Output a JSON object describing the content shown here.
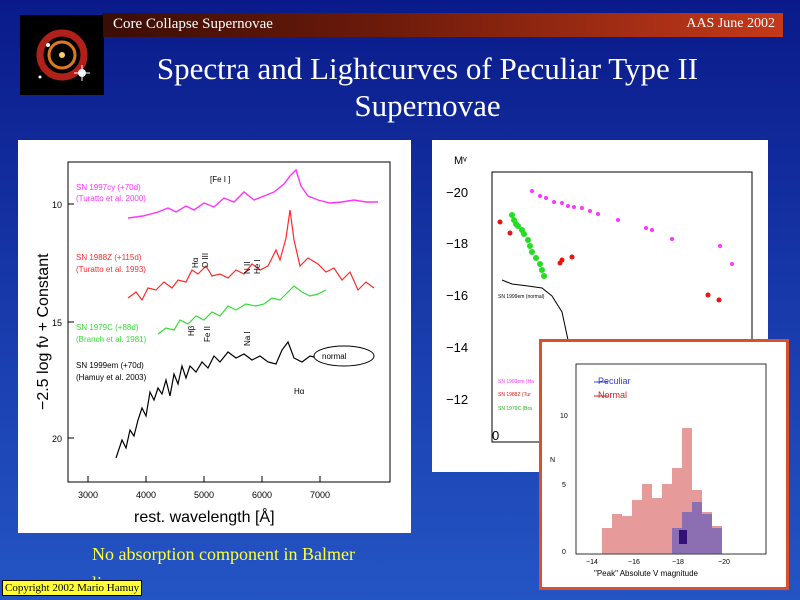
{
  "header": {
    "left": "Core Collapse Supernovae",
    "right": "AAS June 2002"
  },
  "title": {
    "line1": "Spectra and Lightcurves of  Peculiar Type II",
    "line2": "Supernovae"
  },
  "fig1": {
    "ylabel": "−2.5 log fν + Constant",
    "xlabel": "rest. wavelength [Å]",
    "xticks": [
      "3000",
      "4000",
      "5000",
      "6000",
      "7000"
    ],
    "yticks": [
      "10",
      "15",
      "20"
    ],
    "line_labels": {
      "feI": "[Fe I ]",
      "ha1": "Hα",
      "oiii": "O III",
      "nii": "N II",
      "hei": "He I",
      "hb": "Hβ",
      "feii": "Fe II",
      "nai": "Na I",
      "ha2": "Hα"
    },
    "spectra": [
      {
        "name": "SN 1997cy (+70d)",
        "ref": "(Turatto et al. 2000)",
        "color": "#ff33ff"
      },
      {
        "name": "SN 1988Z (+115d)",
        "ref": "(Turatto et al. 1993)",
        "color": "#ff2a2a"
      },
      {
        "name": "SN 1979C (+88d)",
        "ref": "(Branch et al. 1981)",
        "color": "#33dd33"
      },
      {
        "name": "SN 1999em (+70d)",
        "ref": "(Hamuy et al. 2003)",
        "color": "#000000"
      }
    ],
    "annotation": "normal"
  },
  "fig2": {
    "ylabel": "Mᵛ",
    "yticks": [
      "−20",
      "−18",
      "−16",
      "−14",
      "−12"
    ],
    "xtick": "0",
    "legend": [
      "SN 1999em (normal)",
      "SN 1988Z (Tur",
      "SN 1979C (Bra",
      "SN 1999em (Ha"
    ]
  },
  "fig3": {
    "legend": [
      "Peculiar",
      "Normal"
    ],
    "legend_colors": [
      "#3344cc",
      "#cc2222"
    ],
    "yaxis": "N",
    "yticks": [
      "0",
      "5",
      "10"
    ],
    "xticks": [
      "−14",
      "−16",
      "−18",
      "−20"
    ],
    "xlabel": "\"Peak\" Absolute V magnitude"
  },
  "caption": "No absorption component in Balmer lines",
  "copyright": "Copyright 2002 Mario Hamuy"
}
